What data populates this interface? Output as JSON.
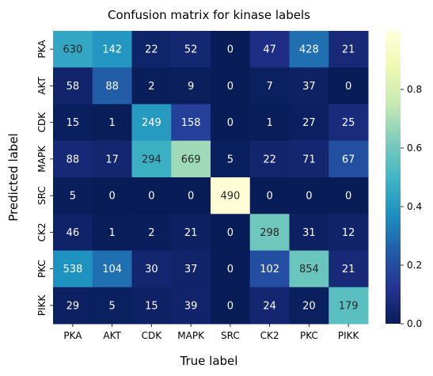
{
  "chart_data": {
    "type": "heatmap",
    "title": "Confusion matrix for kinase labels",
    "xlabel": "True label",
    "ylabel": "Predicted label",
    "x_categories": [
      "PKA",
      "AKT",
      "CDK",
      "MAPK",
      "SRC",
      "CK2",
      "PKC",
      "PIKK"
    ],
    "y_categories": [
      "PKA",
      "AKT",
      "CDK",
      "MAPK",
      "SRC",
      "CK2",
      "PKC",
      "PIKK"
    ],
    "values": [
      [
        630,
        142,
        22,
        52,
        0,
        47,
        428,
        21
      ],
      [
        58,
        88,
        2,
        9,
        0,
        7,
        37,
        0
      ],
      [
        15,
        1,
        249,
        158,
        0,
        1,
        27,
        25
      ],
      [
        88,
        17,
        294,
        669,
        5,
        22,
        71,
        67
      ],
      [
        5,
        0,
        0,
        0,
        490,
        0,
        0,
        0
      ],
      [
        46,
        1,
        2,
        21,
        0,
        298,
        31,
        12
      ],
      [
        538,
        104,
        30,
        37,
        0,
        102,
        854,
        21
      ],
      [
        29,
        5,
        15,
        39,
        0,
        24,
        20,
        179
      ]
    ],
    "colormap": "YlGnBu",
    "colorbar": {
      "range": [
        0,
        1
      ],
      "ticks": [
        "0.0",
        "0.2",
        "0.4",
        "0.6",
        "0.8"
      ]
    },
    "normalization": "column"
  }
}
